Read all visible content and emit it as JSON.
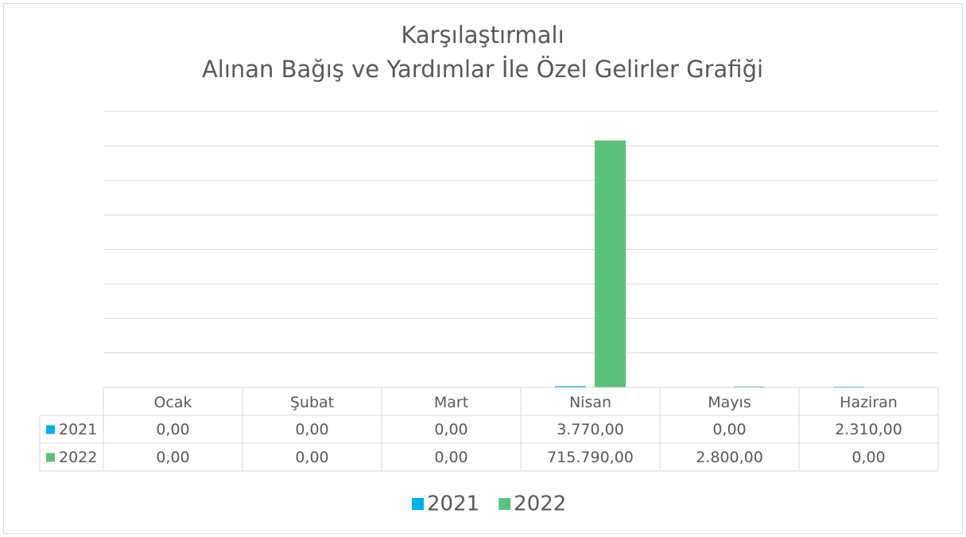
{
  "chart_data": {
    "type": "bar",
    "title": [
      "Karşılaştırmalı",
      "Alınan Bağış ve Yardımlar İle Özel Gelirler Grafiği"
    ],
    "categories": [
      "Ocak",
      "Şubat",
      "Mart",
      "Nisan",
      "Mayıs",
      "Haziran"
    ],
    "series": [
      {
        "name": "2021",
        "color": "#00b0f0",
        "values": [
          0,
          0,
          0,
          3770,
          0,
          2310
        ],
        "value_labels": [
          "0,00",
          "0,00",
          "0,00",
          "3.770,00",
          "0,00",
          "2.310,00"
        ]
      },
      {
        "name": "2022",
        "color": "#5bc27b",
        "values": [
          0,
          0,
          0,
          715790,
          2800,
          0
        ],
        "value_labels": [
          "0,00",
          "0,00",
          "0,00",
          "715.790,00",
          "2.800,00",
          "0,00"
        ]
      }
    ],
    "ylim": [
      0,
      800000
    ],
    "yticks": [
      0,
      100000,
      200000,
      300000,
      400000,
      500000,
      600000,
      700000,
      800000
    ],
    "grid": true
  }
}
